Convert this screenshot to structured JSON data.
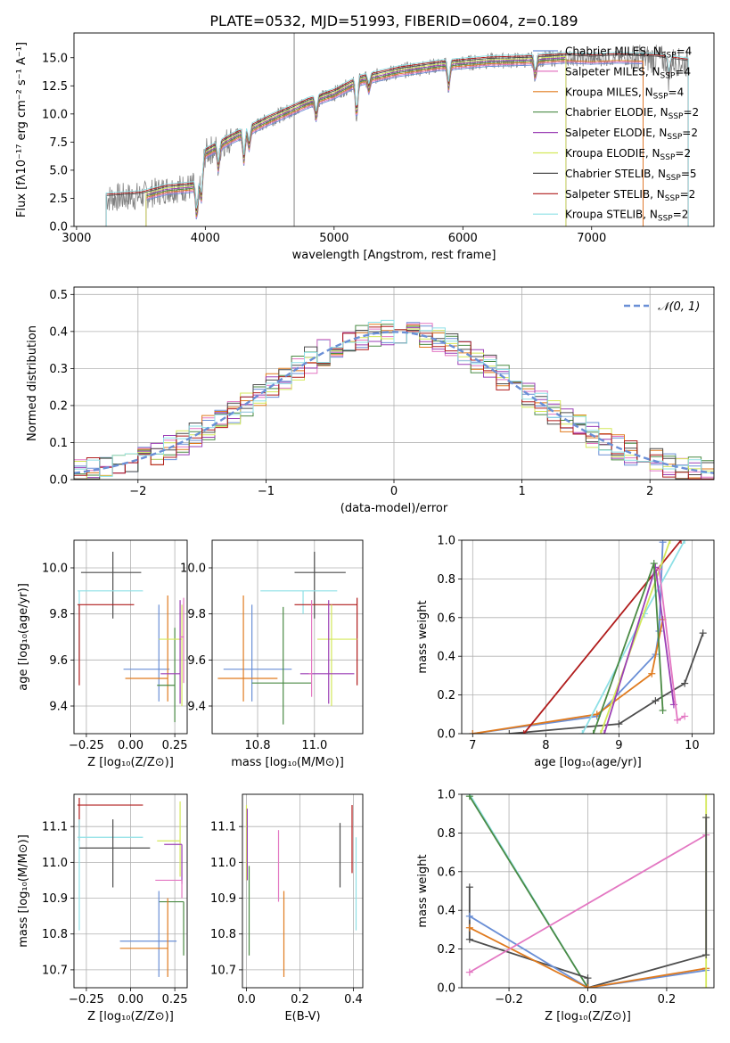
{
  "figure": {
    "title": "PLATE=0532, MJD=51993, FIBERID=0604, z=0.189"
  },
  "colors": {
    "Chabrier MILES": "#6a8fd6",
    "Salpeter MILES": "#e377c2",
    "Kroupa MILES": "#e07b1f",
    "Chabrier ELODIE": "#4a8a44",
    "Salpeter ELODIE": "#9b3fb5",
    "Kroupa ELODIE": "#d4e85a",
    "Chabrier STELIB": "#4d4d4d",
    "Salpeter STELIB": "#b01c1c",
    "Kroupa STELIB": "#8ee0e6",
    "observed": "#808080",
    "normal_curve": "#6a8fd6"
  },
  "chart_data": [
    {
      "id": "spectrum",
      "type": "line",
      "title": "PLATE=0532, MJD=51993, FIBERID=0604, z=0.189",
      "xlabel": "wavelength [Angstrom, rest frame]",
      "ylabel": "Flux [fλ10⁻¹⁷ erg cm⁻² s⁻¹ A⁻¹]",
      "xlim": [
        2980,
        7950
      ],
      "ylim": [
        0,
        17.2
      ],
      "xticks": [
        3000,
        4000,
        5000,
        6000,
        7000
      ],
      "yticks": [
        0.0,
        2.5,
        5.0,
        7.5,
        10.0,
        12.5,
        15.0
      ],
      "grid": false,
      "legend_position": "right",
      "legend": [
        {
          "name": "Chabrier MILES",
          "nssp": "4"
        },
        {
          "name": "Salpeter MILES",
          "nssp": "4"
        },
        {
          "name": "Kroupa MILES",
          "nssp": "4"
        },
        {
          "name": "Chabrier ELODIE",
          "nssp": "2"
        },
        {
          "name": "Salpeter ELODIE",
          "nssp": "2"
        },
        {
          "name": "Kroupa ELODIE",
          "nssp": "2"
        },
        {
          "name": "Chabrier STELIB",
          "nssp": "5"
        },
        {
          "name": "Salpeter STELIB",
          "nssp": "2"
        },
        {
          "name": "Kroupa STELIB",
          "nssp": "2"
        }
      ],
      "continuum": [
        [
          3230,
          2.5
        ],
        [
          3500,
          2.7
        ],
        [
          3700,
          3.3
        ],
        [
          3900,
          3.5
        ],
        [
          3950,
          4.0
        ],
        [
          4000,
          6.5
        ],
        [
          4200,
          7.8
        ],
        [
          4500,
          9.5
        ],
        [
          4800,
          11.0
        ],
        [
          5000,
          11.8
        ],
        [
          5200,
          13.0
        ],
        [
          5500,
          13.8
        ],
        [
          5800,
          14.3
        ],
        [
          6000,
          14.5
        ],
        [
          6200,
          14.7
        ],
        [
          6500,
          14.8
        ],
        [
          6800,
          15.0
        ],
        [
          7000,
          14.9
        ],
        [
          7200,
          15.0
        ],
        [
          7500,
          14.9
        ],
        [
          7750,
          14.5
        ]
      ],
      "absorption_lines": [
        [
          3934,
          3.0
        ],
        [
          3969,
          2.5
        ],
        [
          4102,
          2.0
        ],
        [
          4300,
          2.5
        ],
        [
          4340,
          1.5
        ],
        [
          4861,
          1.5
        ],
        [
          5175,
          3.0
        ],
        [
          5270,
          1.0
        ],
        [
          5890,
          2.0
        ],
        [
          6563,
          1.5
        ],
        [
          7600,
          1.5
        ]
      ],
      "noise_amplitude": 1.3
    },
    {
      "id": "residuals",
      "type": "histogram",
      "xlabel": "(data-model)/error",
      "ylabel": "Normed distribution",
      "xlim": [
        -2.5,
        2.5
      ],
      "ylim": [
        0,
        0.52
      ],
      "xticks": [
        -2,
        -1,
        0,
        1,
        2
      ],
      "yticks": [
        0.0,
        0.1,
        0.2,
        0.3,
        0.4,
        0.5
      ],
      "grid": true,
      "bin_width": 0.1,
      "legend": [
        "𝒩(0, 1)"
      ],
      "legend_position": "top-right",
      "reference_curve": {
        "name": "𝒩(0, 1)",
        "mean": 0,
        "sigma": 1,
        "style": "dashed"
      },
      "series_names": [
        "Chabrier MILES",
        "Salpeter MILES",
        "Kroupa MILES",
        "Chabrier ELODIE",
        "Salpeter ELODIE",
        "Kroupa ELODIE",
        "Chabrier STELIB",
        "Salpeter STELIB",
        "Kroupa STELIB"
      ],
      "scatter_amplitude": 0.03
    },
    {
      "id": "age_vs_Z",
      "type": "scatter",
      "xlabel": "Z [log₁₀(Z/Z⊙)]",
      "ylabel": "age  [log₁₀(age/yr)]",
      "xlim": [
        -0.32,
        0.32
      ],
      "ylim": [
        9.28,
        10.12
      ],
      "xticks": [
        -0.25,
        0.0,
        0.25
      ],
      "yticks": [
        9.4,
        9.6,
        9.8,
        10.0
      ],
      "grid": true,
      "points": [
        {
          "series": "Chabrier STELIB",
          "x": -0.1,
          "y": 9.98,
          "xerr": [
            0.18,
            0.16
          ],
          "yerr": [
            0.2,
            0.09
          ]
        },
        {
          "series": "Kroupa STELIB",
          "x": -0.29,
          "y": 9.9,
          "xerr": [
            0.01,
            0.36
          ],
          "yerr": [
            0.3,
            0.0
          ]
        },
        {
          "series": "Salpeter STELIB",
          "x": -0.29,
          "y": 9.84,
          "xerr": [
            0.01,
            0.31
          ],
          "yerr": [
            0.35,
            0.0
          ]
        },
        {
          "series": "Chabrier MILES",
          "x": 0.16,
          "y": 9.56,
          "xerr": [
            0.2,
            0.06
          ],
          "yerr": [
            0.14,
            0.28
          ]
        },
        {
          "series": "Kroupa MILES",
          "x": 0.21,
          "y": 9.52,
          "xerr": [
            0.24,
            0.0
          ],
          "yerr": [
            0.1,
            0.36
          ]
        },
        {
          "series": "Chabrier ELODIE",
          "x": 0.25,
          "y": 9.49,
          "xerr": [
            0.1,
            0.0
          ],
          "yerr": [
            0.16,
            0.25
          ]
        },
        {
          "series": "Kroupa ELODIE",
          "x": 0.29,
          "y": 9.69,
          "xerr": [
            0.13,
            0.0
          ],
          "yerr": [
            0.29,
            0.15
          ]
        },
        {
          "series": "Salpeter ELODIE",
          "x": 0.28,
          "y": 9.54,
          "xerr": [
            0.11,
            0.0
          ],
          "yerr": [
            0.13,
            0.32
          ]
        },
        {
          "series": "Salpeter MILES",
          "x": 0.3,
          "y": 9.7,
          "xerr": [
            0.02,
            0.0
          ],
          "yerr": [
            0.2,
            0.17
          ]
        }
      ]
    },
    {
      "id": "age_vs_mass",
      "type": "scatter",
      "xlabel": "mass [log₁₀(M/M⊙)]",
      "ylabel": "",
      "xlim": [
        10.64,
        11.17
      ],
      "ylim": [
        9.28,
        10.12
      ],
      "xticks": [
        10.8,
        11.0
      ],
      "yticks": [
        9.4,
        9.6,
        9.8,
        10.0
      ],
      "grid": true,
      "points": [
        {
          "series": "Chabrier STELIB",
          "x": 11.0,
          "y": 9.98,
          "xerr": [
            0.07,
            0.11
          ],
          "yerr": [
            0.2,
            0.09
          ]
        },
        {
          "series": "Kroupa STELIB",
          "x": 10.96,
          "y": 9.9,
          "xerr": [
            0.15,
            0.12
          ],
          "yerr": [
            0.1,
            0.0
          ]
        },
        {
          "series": "Salpeter STELIB",
          "x": 11.15,
          "y": 9.84,
          "xerr": [
            0.22,
            0.0
          ],
          "yerr": [
            0.35,
            0.03
          ]
        },
        {
          "series": "Chabrier MILES",
          "x": 10.78,
          "y": 9.56,
          "xerr": [
            0.1,
            0.14
          ],
          "yerr": [
            0.14,
            0.28
          ]
        },
        {
          "series": "Kroupa MILES",
          "x": 10.75,
          "y": 9.52,
          "xerr": [
            0.09,
            0.12
          ],
          "yerr": [
            0.1,
            0.36
          ]
        },
        {
          "series": "Chabrier ELODIE",
          "x": 10.89,
          "y": 9.5,
          "xerr": [
            0.11,
            0.1
          ],
          "yerr": [
            0.18,
            0.33
          ]
        },
        {
          "series": "Kroupa ELODIE",
          "x": 11.06,
          "y": 9.69,
          "xerr": [
            0.05,
            0.09
          ],
          "yerr": [
            0.29,
            0.15
          ]
        },
        {
          "series": "Salpeter ELODIE",
          "x": 11.05,
          "y": 9.54,
          "xerr": [
            0.1,
            0.09
          ],
          "yerr": [
            0.13,
            0.32
          ]
        },
        {
          "series": "Salpeter MILES",
          "x": 10.99,
          "y": 9.54,
          "xerr": [
            0.01,
            0.0
          ],
          "yerr": [
            0.1,
            0.32
          ]
        }
      ]
    },
    {
      "id": "weight_vs_age",
      "type": "line",
      "xlabel": "age  [log₁₀(age/yr)]",
      "ylabel": "mass weight",
      "xlim": [
        6.85,
        10.3
      ],
      "ylim": [
        0,
        1.0
      ],
      "xticks": [
        7,
        8,
        9,
        10
      ],
      "yticks": [
        0.0,
        0.2,
        0.4,
        0.6,
        0.8,
        1.0
      ],
      "grid": true,
      "series": [
        {
          "name": "Chabrier MILES",
          "points": [
            [
              7.0,
              0.0
            ],
            [
              8.7,
              0.09
            ],
            [
              9.5,
              0.41
            ],
            [
              9.55,
              0.53
            ],
            [
              9.6,
              0.99
            ]
          ]
        },
        {
          "name": "Kroupa MILES",
          "points": [
            [
              7.0,
              0.0
            ],
            [
              8.7,
              0.1
            ],
            [
              9.45,
              0.31
            ],
            [
              9.6,
              0.59
            ]
          ]
        },
        {
          "name": "Chabrier STELIB",
          "points": [
            [
              7.5,
              0.0
            ],
            [
              9.0,
              0.05
            ],
            [
              9.5,
              0.17
            ],
            [
              9.9,
              0.26
            ],
            [
              10.15,
              0.52
            ]
          ]
        },
        {
          "name": "Salpeter STELIB",
          "points": [
            [
              7.7,
              0.0
            ],
            [
              9.85,
              1.0
            ]
          ]
        },
        {
          "name": "Kroupa STELIB",
          "points": [
            [
              8.5,
              0.0
            ],
            [
              9.35,
              0.62
            ],
            [
              9.9,
              1.0
            ]
          ]
        },
        {
          "name": "Kroupa ELODIE",
          "points": [
            [
              8.75,
              0.0
            ],
            [
              9.7,
              1.0
            ]
          ]
        },
        {
          "name": "Salpeter ELODIE",
          "points": [
            [
              8.8,
              0.0
            ],
            [
              9.5,
              0.86
            ],
            [
              9.75,
              0.15
            ]
          ]
        },
        {
          "name": "Chabrier ELODIE",
          "points": [
            [
              8.65,
              0.0
            ],
            [
              9.48,
              0.88
            ],
            [
              9.6,
              0.12
            ]
          ]
        },
        {
          "name": "Salpeter MILES",
          "points": [
            [
              9.55,
              0.85
            ],
            [
              9.8,
              0.07
            ],
            [
              9.9,
              0.09
            ]
          ]
        }
      ]
    },
    {
      "id": "mass_vs_Z",
      "type": "scatter",
      "xlabel": "Z [log₁₀(Z/Z⊙)]",
      "ylabel": "mass [log₁₀(M/M⊙)]",
      "xlim": [
        -0.32,
        0.32
      ],
      "ylim": [
        10.65,
        11.19
      ],
      "xticks": [
        -0.25,
        0.0,
        0.25
      ],
      "yticks": [
        10.7,
        10.8,
        10.9,
        11.0,
        11.1
      ],
      "grid": true,
      "points": [
        {
          "series": "Salpeter STELIB",
          "x": -0.29,
          "y": 11.16,
          "xerr": [
            0.01,
            0.36
          ],
          "yerr": [
            0.1,
            0.02
          ]
        },
        {
          "series": "Kroupa STELIB",
          "x": -0.29,
          "y": 11.07,
          "xerr": [
            0.01,
            0.36
          ],
          "yerr": [
            0.26,
            0.05
          ]
        },
        {
          "series": "Chabrier STELIB",
          "x": -0.1,
          "y": 11.04,
          "xerr": [
            0.19,
            0.21
          ],
          "yerr": [
            0.11,
            0.08
          ]
        },
        {
          "series": "Kroupa ELODIE",
          "x": 0.28,
          "y": 11.06,
          "xerr": [
            0.13,
            0.0
          ],
          "yerr": [
            0.1,
            0.11
          ]
        },
        {
          "series": "Salpeter ELODIE",
          "x": 0.29,
          "y": 11.05,
          "xerr": [
            0.1,
            0.0
          ],
          "yerr": [
            0.11,
            0.0
          ]
        },
        {
          "series": "Salpeter MILES",
          "x": 0.29,
          "y": 10.95,
          "xerr": [
            0.15,
            0.0
          ],
          "yerr": [
            0.05,
            0.0
          ]
        },
        {
          "series": "Chabrier ELODIE",
          "x": 0.3,
          "y": 10.89,
          "xerr": [
            0.14,
            0.0
          ],
          "yerr": [
            0.15,
            0.0
          ]
        },
        {
          "series": "Chabrier MILES",
          "x": 0.16,
          "y": 10.78,
          "xerr": [
            0.22,
            0.1
          ],
          "yerr": [
            0.1,
            0.14
          ]
        },
        {
          "series": "Kroupa MILES",
          "x": 0.21,
          "y": 10.76,
          "xerr": [
            0.27,
            0.0
          ],
          "yerr": [
            0.08,
            0.14
          ]
        }
      ]
    },
    {
      "id": "mass_vs_ebv",
      "type": "scatter",
      "xlabel": "E(B-V)",
      "ylabel": "",
      "xlim": [
        -0.015,
        0.435
      ],
      "ylim": [
        10.65,
        11.19
      ],
      "xticks": [
        0.0,
        0.2,
        0.4
      ],
      "yticks": [
        10.7,
        10.8,
        10.9,
        11.0,
        11.1
      ],
      "grid": true,
      "points": [
        {
          "series": "Kroupa ELODIE",
          "x": 0.0,
          "y": 11.05,
          "yerr": [
            0.1,
            0.11
          ]
        },
        {
          "series": "Salpeter ELODIE",
          "x": 0.003,
          "y": 11.05,
          "yerr": [
            0.1,
            0.1
          ]
        },
        {
          "series": "Chabrier ELODIE",
          "x": 0.01,
          "y": 10.89,
          "yerr": [
            0.15,
            0.1
          ]
        },
        {
          "series": "Salpeter MILES",
          "x": 0.12,
          "y": 11.0,
          "yerr": [
            0.11,
            0.09
          ]
        },
        {
          "series": "Kroupa MILES",
          "x": 0.14,
          "y": 10.8,
          "yerr": [
            0.12,
            0.12
          ]
        },
        {
          "series": "Chabrier STELIB",
          "x": 0.35,
          "y": 11.04,
          "yerr": [
            0.11,
            0.07
          ]
        },
        {
          "series": "Salpeter STELIB",
          "x": 0.395,
          "y": 11.07,
          "yerr": [
            0.1,
            0.09
          ]
        },
        {
          "series": "Kroupa STELIB",
          "x": 0.41,
          "y": 10.95,
          "yerr": [
            0.14,
            0.12
          ]
        }
      ]
    },
    {
      "id": "weight_vs_Z",
      "type": "line",
      "xlabel": "Z [log₁₀(Z/Z⊙)]",
      "ylabel": "mass weight",
      "xlim": [
        -0.32,
        0.32
      ],
      "ylim": [
        0,
        1.0
      ],
      "xticks": [
        -0.2,
        0.0,
        0.2
      ],
      "yticks": [
        0.0,
        0.2,
        0.4,
        0.6,
        0.8,
        1.0
      ],
      "grid": true,
      "series": [
        {
          "name": "Kroupa STELIB",
          "points": [
            [
              -0.3,
              1.0
            ],
            [
              0.0,
              0.0
            ]
          ]
        },
        {
          "name": "Chabrier ELODIE",
          "points": [
            [
              -0.3,
              0.99
            ],
            [
              0.0,
              0.0
            ]
          ]
        },
        {
          "name": "Chabrier STELIB",
          "points": [
            [
              -0.3,
              0.52
            ],
            [
              -0.3,
              0.25
            ],
            [
              0.0,
              0.05
            ],
            [
              0.0,
              0.0
            ],
            [
              0.3,
              0.17
            ]
          ]
        },
        {
          "name": "Chabrier MILES",
          "points": [
            [
              -0.3,
              0.37
            ],
            [
              0.0,
              0.0
            ],
            [
              0.3,
              0.09
            ]
          ]
        },
        {
          "name": "Kroupa MILES",
          "points": [
            [
              -0.3,
              0.31
            ],
            [
              0.0,
              0.0
            ],
            [
              0.3,
              0.1
            ]
          ]
        },
        {
          "name": "Salpeter MILES",
          "points": [
            [
              -0.3,
              0.08
            ],
            [
              0.3,
              0.79
            ]
          ]
        },
        {
          "name": "Kroupa ELODIE",
          "points": [
            [
              0.3,
              0.0
            ],
            [
              0.3,
              1.0
            ]
          ]
        },
        {
          "name": "Chabrier STELIB",
          "points": [
            [
              0.3,
              0.88
            ],
            [
              0.3,
              0.17
            ]
          ]
        }
      ]
    }
  ]
}
